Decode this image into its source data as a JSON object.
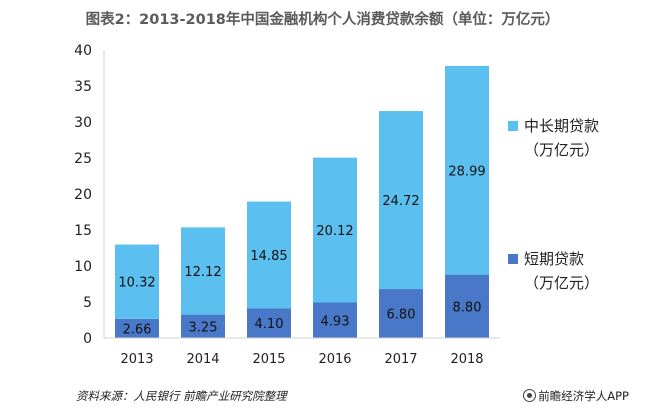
{
  "chart_data": {
    "type": "bar",
    "stacked": true,
    "title": "图表2：2013-2018年中国金融机构个人消费贷款余额（单位：万亿元）",
    "categories": [
      "2013",
      "2014",
      "2015",
      "2016",
      "2017",
      "2018"
    ],
    "series": [
      {
        "name": "短期贷款（万亿元）",
        "legend_line1": "短期贷款",
        "legend_line2": "（万亿元）",
        "color": "#4a78c9",
        "values": [
          2.66,
          3.25,
          4.1,
          4.93,
          6.8,
          8.8
        ]
      },
      {
        "name": "中长期贷款（万亿元）",
        "legend_line1": "中长期贷款",
        "legend_line2": "（万亿元）",
        "color": "#5bc0f0",
        "values": [
          10.32,
          12.12,
          14.85,
          20.12,
          24.72,
          28.99
        ]
      }
    ],
    "ylim": [
      0,
      40
    ],
    "yticks": [
      0,
      5,
      10,
      15,
      20,
      25,
      30,
      35,
      40
    ],
    "xlabel": "",
    "ylabel": "",
    "grid": false,
    "legend_position": "right"
  },
  "footer": {
    "source": "资料来源：人民银行  前瞻产业研究院整理",
    "brand": "前瞻经济学人APP"
  }
}
